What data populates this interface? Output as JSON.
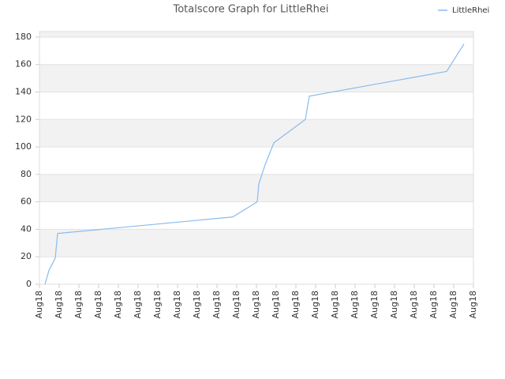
{
  "chart_data": {
    "type": "line",
    "title": "Totalscore Graph for LittleRhei",
    "x": [
      0.28,
      0.48,
      0.8,
      0.92,
      9.8,
      11.04,
      11.12,
      11.44,
      11.88,
      13.48,
      13.68,
      20.64,
      21.52
    ],
    "series": [
      {
        "name": "LittleRhei",
        "color": "#88bbee",
        "values": [
          0,
          10,
          19,
          37,
          49,
          60,
          73,
          87,
          103,
          120,
          137,
          155,
          175
        ]
      }
    ],
    "xlim": [
      0,
      22
    ],
    "xticks": [
      {
        "value": 0,
        "label": "Aug18"
      },
      {
        "value": 1,
        "label": "Aug18"
      },
      {
        "value": 2,
        "label": "Aug18"
      },
      {
        "value": 3,
        "label": "Aug18"
      },
      {
        "value": 4,
        "label": "Aug18"
      },
      {
        "value": 5,
        "label": "Aug18"
      },
      {
        "value": 6,
        "label": "Aug18"
      },
      {
        "value": 7,
        "label": "Aug18"
      },
      {
        "value": 8,
        "label": "Aug18"
      },
      {
        "value": 9,
        "label": "Aug18"
      },
      {
        "value": 10,
        "label": "Aug18"
      },
      {
        "value": 11,
        "label": "Aug18"
      },
      {
        "value": 12,
        "label": "Aug18"
      },
      {
        "value": 13,
        "label": "Aug18"
      },
      {
        "value": 14,
        "label": "Aug18"
      },
      {
        "value": 15,
        "label": "Aug18"
      },
      {
        "value": 16,
        "label": "Aug18"
      },
      {
        "value": 17,
        "label": "Aug18"
      },
      {
        "value": 18,
        "label": "Aug18"
      },
      {
        "value": 19,
        "label": "Aug18"
      },
      {
        "value": 20,
        "label": "Aug18"
      },
      {
        "value": 21,
        "label": "Aug18"
      },
      {
        "value": 22,
        "label": "Aug18"
      }
    ],
    "ylim": [
      0,
      184
    ],
    "yticks": [
      0,
      20,
      40,
      60,
      80,
      100,
      120,
      140,
      160,
      180
    ],
    "grid": true,
    "legend": "top-right"
  }
}
